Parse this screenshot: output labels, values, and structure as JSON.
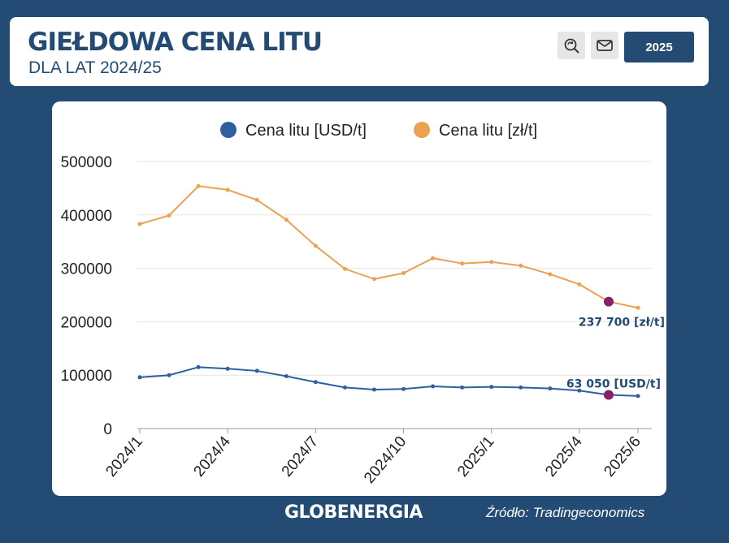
{
  "header": {
    "title": "GIEŁDOWA CENA LITU",
    "subtitle": "DLA LAT 2024/25",
    "year_button": "2025",
    "search_icon": "search-refresh-icon",
    "mail_icon": "mail-icon"
  },
  "footer": {
    "brand": "GLOBENERGIA",
    "source": "Źródło: Tradingeconomics"
  },
  "colors": {
    "background": "#234b73",
    "usd_series": "#2f5f9e",
    "pln_series": "#eba152",
    "highlight": "#8a1f6b"
  },
  "chart_data": {
    "type": "line",
    "legend_position": "top-center",
    "grid": true,
    "ylim": [
      0,
      500000
    ],
    "yticks": [
      0,
      100000,
      200000,
      300000,
      400000,
      500000
    ],
    "ytick_labels": [
      "0",
      "100000",
      "200000",
      "300000",
      "400000",
      "500000"
    ],
    "x_tick_labels": [
      "2024/1",
      "2024/4",
      "2024/7",
      "2024/10",
      "2025/1",
      "2025/4",
      "2025/6"
    ],
    "x_tick_indices": [
      0,
      3,
      6,
      9,
      12,
      15,
      17
    ],
    "series": [
      {
        "name": "Cena litu [USD/t]",
        "values": [
          96000,
          100000,
          115000,
          112000,
          108000,
          98000,
          87000,
          77000,
          73000,
          74000,
          79000,
          77000,
          78000,
          77000,
          75000,
          71000,
          63050,
          61000
        ]
      },
      {
        "name": "Cena litu [zł/t]",
        "values": [
          383000,
          399000,
          454000,
          447000,
          428000,
          391000,
          342000,
          299000,
          280000,
          291000,
          319000,
          309000,
          312000,
          305000,
          289000,
          270000,
          237700,
          226000
        ]
      }
    ],
    "annotations": [
      {
        "series": 1,
        "index": 16,
        "text": "237 700 [zł/t]"
      },
      {
        "series": 0,
        "index": 16,
        "text": "63 050 [USD/t]"
      }
    ]
  }
}
